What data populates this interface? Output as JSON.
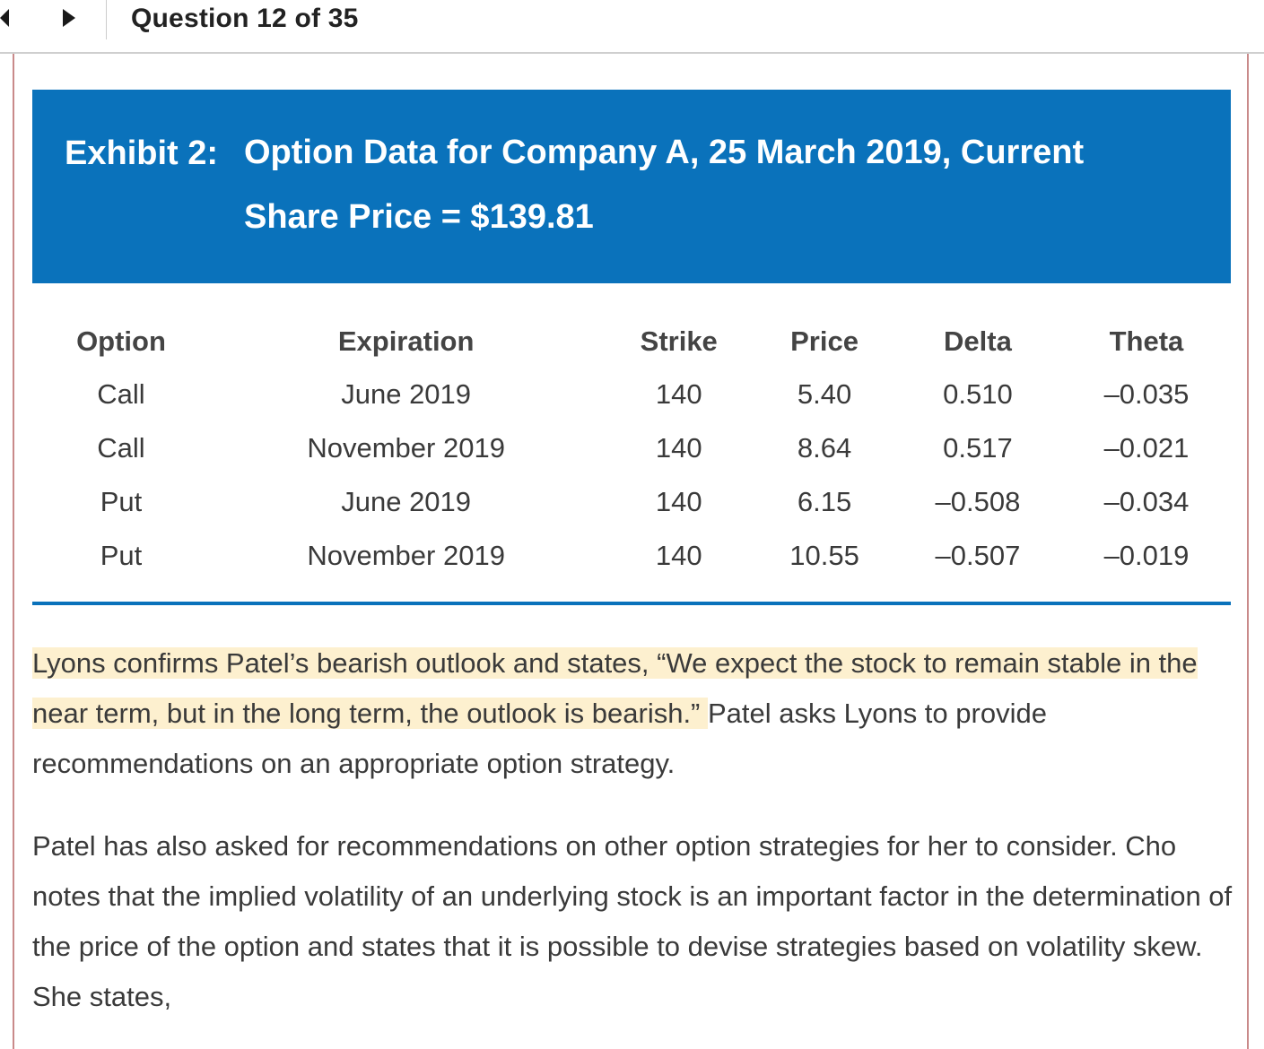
{
  "header": {
    "question_counter": "Question 12 of 35"
  },
  "exhibit": {
    "label": "Exhibit 2:",
    "title": "Option Data for Company A, 25 March 2019, Current Share Price = $139.81",
    "accent_color": "#0a72bb"
  },
  "table": {
    "columns": [
      "Option",
      "Expiration",
      "Strike",
      "Price",
      "Delta",
      "Theta"
    ],
    "rows": [
      [
        "Call",
        "June 2019",
        "140",
        "5.40",
        "0.510",
        "–0.035"
      ],
      [
        "Call",
        "November 2019",
        "140",
        "8.64",
        "0.517",
        "–0.021"
      ],
      [
        "Put",
        "June 2019",
        "140",
        "6.15",
        "–0.508",
        "–0.034"
      ],
      [
        "Put",
        "November 2019",
        "140",
        "10.55",
        "–0.507",
        "–0.019"
      ]
    ]
  },
  "passage": {
    "para1_highlighted": "Lyons confirms Patel’s bearish outlook and states, “We expect the stock to remain stable in the near term, but in the long term, the outlook is bearish.” ",
    "para1_rest": "Patel asks Lyons to provide recommendations on an appropriate option strategy.",
    "para2": "Patel has also asked for recommendations on other option strategies for her to consider. Cho notes that the implied volatility of an underlying stock is an important factor in the determination of the price of the option and states that it is possible to devise strategies based on volatility skew. She states,",
    "highlight_color": "#fdf0cf"
  },
  "icons": {
    "prev": "previous-arrow-icon",
    "next": "next-arrow-icon"
  }
}
